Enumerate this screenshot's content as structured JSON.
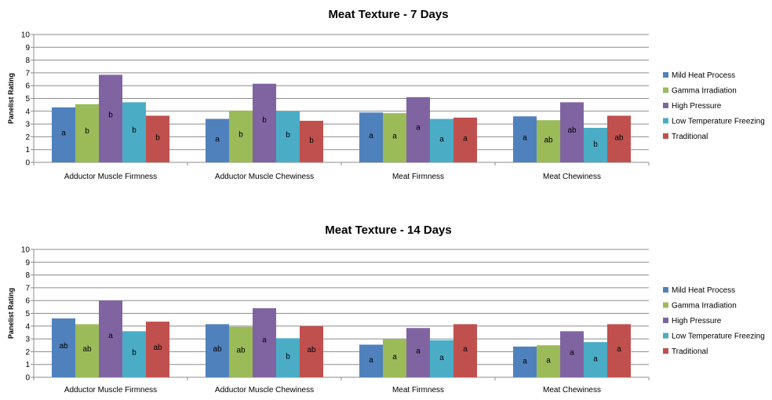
{
  "chart_data": [
    {
      "type": "bar",
      "title": "Meat Texture - 7 Days",
      "ylabel": "Panelist Rating",
      "xlabel": "",
      "ylim": [
        0,
        10
      ],
      "yticks": [
        "0",
        "1",
        "2",
        "3",
        "4",
        "5",
        "6",
        "7",
        "8",
        "9",
        "10"
      ],
      "grid": true,
      "legend_position": "right",
      "categories": [
        "Adductor Muscle Firmness",
        "Adductor Muscle Chewiness",
        "Meat Firmness",
        "Meat Chewiness"
      ],
      "series": [
        {
          "name": "Mild Heat Process",
          "color": "#4F81BD",
          "values": [
            4.3,
            3.4,
            3.9,
            3.6
          ],
          "labels": [
            "a",
            "a",
            "a",
            "a"
          ]
        },
        {
          "name": "Gamma Irradiation",
          "color": "#9BBB59",
          "values": [
            4.55,
            4.05,
            3.85,
            3.3
          ],
          "labels": [
            "b",
            "b",
            "a",
            "ab"
          ]
        },
        {
          "name": "High Pressure",
          "color": "#8064A2",
          "values": [
            6.85,
            6.15,
            5.1,
            4.7
          ],
          "labels": [
            "b",
            "b",
            "a",
            "ab"
          ]
        },
        {
          "name": "Low Temperature Freezing",
          "color": "#4BACC6",
          "values": [
            4.7,
            4.0,
            3.4,
            2.7
          ],
          "labels": [
            "b",
            "b",
            "a",
            "b"
          ]
        },
        {
          "name": "Traditional",
          "color": "#C0504D",
          "values": [
            3.65,
            3.25,
            3.5,
            3.65
          ],
          "labels": [
            "b",
            "b",
            "a",
            "ab"
          ]
        }
      ]
    },
    {
      "type": "bar",
      "title": "Meat Texture - 14 Days",
      "ylabel": "Panelist Rating",
      "xlabel": "",
      "ylim": [
        0,
        10
      ],
      "yticks": [
        "0",
        "1",
        "2",
        "3",
        "4",
        "5",
        "6",
        "7",
        "8",
        "9",
        "10"
      ],
      "grid": true,
      "legend_position": "right",
      "categories": [
        "Adductor Muscle Firmness",
        "Adductor Muscle Chewiness",
        "Meat Firmness",
        "Meat Chewiness"
      ],
      "series": [
        {
          "name": "Mild Heat Process",
          "color": "#4F81BD",
          "values": [
            4.6,
            4.15,
            2.55,
            2.4
          ],
          "labels": [
            "ab",
            "ab",
            "a",
            "a"
          ]
        },
        {
          "name": "Gamma Irradiation",
          "color": "#9BBB59",
          "values": [
            4.15,
            3.95,
            3.0,
            2.5
          ],
          "labels": [
            "ab",
            "ab",
            "a",
            "a"
          ]
        },
        {
          "name": "High Pressure",
          "color": "#8064A2",
          "values": [
            6.0,
            5.4,
            3.85,
            3.6
          ],
          "labels": [
            "a",
            "a",
            "a",
            "a"
          ]
        },
        {
          "name": "Low Temperature Freezing",
          "color": "#4BACC6",
          "values": [
            3.6,
            3.05,
            2.9,
            2.75
          ],
          "labels": [
            "b",
            "b",
            "a",
            "a"
          ]
        },
        {
          "name": "Traditional",
          "color": "#C0504D",
          "values": [
            4.35,
            4.0,
            4.15,
            4.15
          ],
          "labels": [
            "ab",
            "ab",
            "a",
            "a"
          ]
        }
      ]
    }
  ]
}
